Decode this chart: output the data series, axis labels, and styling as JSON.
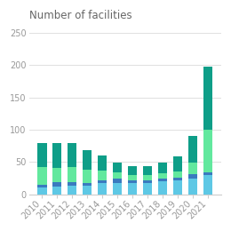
{
  "years": [
    "2010",
    "2011",
    "2012",
    "2013",
    "2014",
    "2015",
    "2016",
    "2017",
    "2018",
    "2019",
    "2020",
    "2021"
  ],
  "seg1_light_blue": [
    11,
    12,
    13,
    14,
    18,
    18,
    18,
    18,
    20,
    22,
    25,
    30
  ],
  "seg2_navy": [
    4,
    7,
    6,
    4,
    4,
    6,
    4,
    4,
    4,
    4,
    6,
    4
  ],
  "seg3_light_green": [
    27,
    22,
    23,
    20,
    15,
    10,
    8,
    8,
    8,
    10,
    18,
    66
  ],
  "seg4_teal": [
    38,
    38,
    38,
    30,
    23,
    15,
    14,
    14,
    17,
    23,
    41,
    97
  ],
  "color1": "#5ec8e5",
  "color2": "#3a7abf",
  "color3": "#62e89e",
  "color4": "#0e9e88",
  "title": "Number of facilities",
  "ylim": [
    0,
    260
  ],
  "yticks": [
    0,
    50,
    100,
    150,
    200,
    250
  ],
  "background_color": "#ffffff",
  "title_fontsize": 8.5,
  "tick_fontsize": 7,
  "bar_width": 0.6,
  "grid_color": "#e0e0e0",
  "spine_color": "#cccccc",
  "tick_color": "#999999"
}
